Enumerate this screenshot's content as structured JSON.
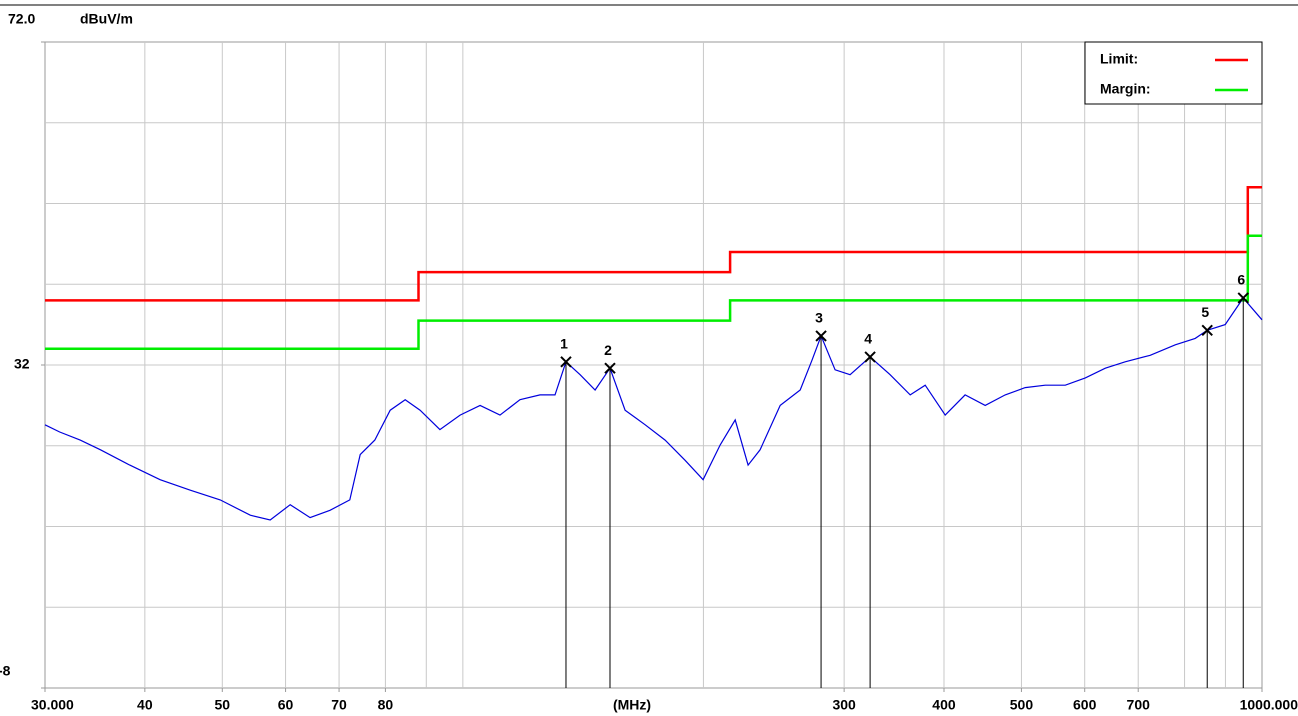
{
  "chart_data": {
    "type": "line",
    "y_unit": "dBuV/m",
    "x_unit": "(MHz)",
    "xscale": "log",
    "xlim": [
      30,
      1000
    ],
    "ylim": [
      -8,
      72
    ],
    "xticks": [
      {
        "value": 30,
        "label": "30.000"
      },
      40,
      50,
      60,
      70,
      80,
      300,
      400,
      500,
      600,
      700,
      {
        "value": 1000,
        "label": "1000.000"
      }
    ],
    "yticks": [
      {
        "value": 72,
        "label": "72.0"
      },
      32,
      -8
    ],
    "xgrid": [
      40,
      50,
      60,
      70,
      80,
      90,
      100,
      200,
      300,
      400,
      500,
      600,
      700,
      800,
      900
    ],
    "ygrid": [
      2,
      12,
      22,
      32,
      42,
      52,
      62
    ],
    "legend": "upper right",
    "series": [
      {
        "name": "Limit:",
        "color": "#ff0000",
        "x": [
          30,
          88,
          88,
          216,
          216,
          960,
          960,
          1000
        ],
        "values": [
          40,
          40,
          43.5,
          43.5,
          46,
          46,
          54,
          54
        ]
      },
      {
        "name": "Margin:",
        "color": "#00ee00",
        "x": [
          30,
          88,
          88,
          216,
          216,
          960,
          960,
          1000
        ],
        "values": [
          34,
          34,
          37.5,
          37.5,
          40,
          40,
          48,
          48
        ]
      },
      {
        "color": "#0000dd",
        "x": [
          30.0,
          31.3,
          33.2,
          35.2,
          38.3,
          41.8,
          45.6,
          49.7,
          54.2,
          57.4,
          60.8,
          64.4,
          68.2,
          72.2,
          74.4,
          77.6,
          81.1,
          84.7,
          88.4,
          93.6,
          99.2,
          105.1,
          111.3,
          117.9,
          124.9,
          130.4,
          134.6,
          140.2,
          146.4,
          152.8,
          159.6,
          169.1,
          179.1,
          189.7,
          199.8,
          209.9,
          219.2,
          227.5,
          235.5,
          249.5,
          264.3,
          273.5,
          280.7,
          292.3,
          305.2,
          323.3,
          342.5,
          362.9,
          378.9,
          401.4,
          425.1,
          450.4,
          477.2,
          505.4,
          535.5,
          567.3,
          601.0,
          636.7,
          674.3,
          724.7,
          778.9,
          825.0,
          854.0,
          899.5,
          947.4,
          1000
        ],
        "values": [
          24.6,
          23.7,
          22.7,
          21.5,
          19.6,
          17.8,
          16.5,
          15.3,
          13.4,
          12.8,
          14.7,
          13.1,
          14.0,
          15.3,
          20.9,
          22.7,
          26.4,
          27.7,
          26.4,
          24.0,
          25.8,
          27.0,
          25.8,
          27.7,
          28.3,
          28.3,
          32.4,
          30.8,
          28.9,
          31.6,
          26.4,
          24.6,
          22.7,
          20.2,
          17.8,
          22.1,
          25.2,
          19.6,
          21.5,
          27.0,
          28.9,
          32.6,
          35.6,
          31.4,
          30.8,
          33.0,
          30.8,
          28.3,
          29.5,
          25.8,
          28.3,
          27.0,
          28.3,
          29.2,
          29.5,
          29.5,
          30.4,
          31.6,
          32.4,
          33.2,
          34.5,
          35.3,
          36.3,
          37.0,
          40.3,
          37.6
        ]
      }
    ],
    "markers": [
      {
        "label": "1",
        "x": 134.6,
        "value": 32.4
      },
      {
        "label": "2",
        "x": 152.8,
        "value": 31.6
      },
      {
        "label": "3",
        "x": 280.7,
        "value": 35.6
      },
      {
        "label": "4",
        "x": 323.3,
        "value": 33.0
      },
      {
        "label": "5",
        "x": 854.0,
        "value": 36.3
      },
      {
        "label": "6",
        "x": 947.4,
        "value": 40.3
      }
    ]
  }
}
